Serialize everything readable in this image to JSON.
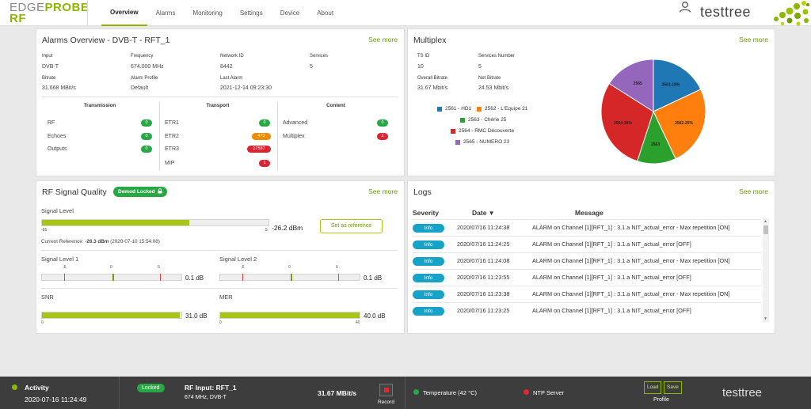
{
  "brand": {
    "edge": "EDGE",
    "probe": "PROBE",
    "rf": "RF",
    "company": "testtree"
  },
  "nav": [
    "Overview",
    "Alarms",
    "Monitoring",
    "Settings",
    "Device",
    "About"
  ],
  "alarms": {
    "title": "Alarms Overview - DVB-T - RFT_1",
    "see_more": "See more",
    "fields": [
      {
        "label": "Input",
        "value": "DVB-T"
      },
      {
        "label": "Frequency",
        "value": "674.000 MHz"
      },
      {
        "label": "Network ID",
        "value": "8442"
      },
      {
        "label": "Services",
        "value": "5"
      },
      {
        "label": "Bitrate",
        "value": "31.668 MBit/s"
      },
      {
        "label": "Alarm Profile",
        "value": "Default"
      },
      {
        "label": "Last Alarm",
        "value": "2021-12-14 09:23:30"
      }
    ],
    "groups": [
      {
        "title": "Transmission",
        "rows": [
          {
            "name": "RF",
            "count": "0",
            "color": "#28a745"
          },
          {
            "name": "Echoes",
            "count": "0",
            "color": "#28a745"
          },
          {
            "name": "Outputs",
            "count": "0",
            "color": "#28a745"
          }
        ]
      },
      {
        "title": "Transport",
        "rows": [
          {
            "name": "ETR1",
            "count": "0",
            "color": "#28a745"
          },
          {
            "name": "ETR2",
            "count": "473",
            "color": "#f08c00"
          },
          {
            "name": "ETR3",
            "count": "17587",
            "color": "#dc2433"
          },
          {
            "name": "MIP",
            "count": "1",
            "color": "#dc2433"
          }
        ]
      },
      {
        "title": "Content",
        "rows": [
          {
            "name": "Advanced",
            "count": "0",
            "color": "#28a745"
          },
          {
            "name": "Multiplex",
            "count": "2",
            "color": "#dc2433"
          }
        ]
      }
    ]
  },
  "multiplex": {
    "title": "Multiplex",
    "see_more": "See more",
    "fields": [
      {
        "label": "TS ID",
        "value": "10"
      },
      {
        "label": "Services Number",
        "value": "5"
      },
      {
        "label": "Overall Bitrate",
        "value": "31.67 Mbit/s"
      },
      {
        "label": "Net Bitrate",
        "value": "24.53 Mbit/s"
      }
    ]
  },
  "chart_data": {
    "type": "pie",
    "slices": [
      {
        "name": "2561 - HD1",
        "label": "2561-18%",
        "value": 18,
        "color": "#1f77b4"
      },
      {
        "name": "2562 - L'Equipe 21",
        "label": "2562-25%",
        "value": 25,
        "color": "#ff7f0e"
      },
      {
        "name": "2563 - Chérie 25",
        "label": "2563",
        "value": 12,
        "color": "#2ca02c"
      },
      {
        "name": "2564 - RMC Découverte",
        "label": "2564-29%",
        "value": 29,
        "color": "#d62728"
      },
      {
        "name": "2565 - NUMERO 23",
        "label": "2565",
        "value": 16,
        "color": "#9467bd"
      }
    ],
    "legend_placement": "left"
  },
  "rf": {
    "title": "RF Signal Quality",
    "demod": "Demod Locked",
    "see_more": "See more",
    "signal_level": {
      "label": "Signal Level",
      "value": "-26.2 dBm",
      "min": "-85",
      "max": "5",
      "fraction": 0.65
    },
    "set_reference": "Set as reference",
    "reference_prefix": "Current Reference:",
    "reference_value": "-26.3 dBm",
    "reference_date": "(2020-07-10 15:54:08)",
    "level1": {
      "label": "Signal Level 1",
      "ticks": [
        "-6",
        "0",
        "6"
      ],
      "value": "0.1 dB"
    },
    "level2": {
      "label": "Signal Level 2",
      "ticks": [
        "-6",
        "0",
        "6"
      ],
      "value": "0.1 dB"
    },
    "snr": {
      "label": "SNR",
      "value": "31.0 dB",
      "min": "0",
      "fraction": 0.99
    },
    "mer": {
      "label": "MER",
      "value": "40.0 dB",
      "min": "0",
      "max": "40",
      "fraction": 1.0
    }
  },
  "logs": {
    "title": "Logs",
    "see_more": "See more",
    "headers": {
      "severity": "Severity",
      "date": "Date",
      "message": "Message"
    },
    "rows": [
      {
        "severity": "Info",
        "date": "2020/07/16 11:24:38",
        "message": "ALARM on Channel [1][RFT_1] : 3.1.a NIT_actual_error - Max repetition  [ON]"
      },
      {
        "severity": "Info",
        "date": "2020/07/16 11:24:25",
        "message": "ALARM on Channel [1][RFT_1] : 3.1.a NIT_actual_error [OFF]"
      },
      {
        "severity": "Info",
        "date": "2020/07/16 11:24:08",
        "message": "ALARM on Channel [1][RFT_1] : 3.1.a NIT_actual_error - Max repetition  [ON]"
      },
      {
        "severity": "Info",
        "date": "2020/07/16 11:23:55",
        "message": "ALARM on Channel [1][RFT_1] : 3.1.a NIT_actual_error [OFF]"
      },
      {
        "severity": "Info",
        "date": "2020/07/16 11:23:38",
        "message": "ALARM on Channel [1][RFT_1] : 3.1.a NIT_actual_error - Max repetition  [ON]"
      },
      {
        "severity": "Info",
        "date": "2020/07/16 11:23:25",
        "message": "ALARM on Channel [1][RFT_1] : 3.1.a NIT_actual_error [OFF]"
      }
    ]
  },
  "footer": {
    "activity": "Activity",
    "activity_time": "2020-07-16 11:24:49",
    "locked": "Locked",
    "rf_input": "RF Input: RFT_1",
    "rf_detail": "674 MHz, DVB-T",
    "bitrate": "31.67 MBit/s",
    "record": "Record",
    "temperature": "Temperature (42 °C)",
    "ntp": "NTP Server",
    "load": "Load",
    "save": "Save",
    "profile": "Profile",
    "company": "testtree"
  },
  "icons": {
    "user": "user-icon",
    "lock": "lock-icon",
    "record": "record-icon",
    "sort": "sort-down-icon"
  }
}
